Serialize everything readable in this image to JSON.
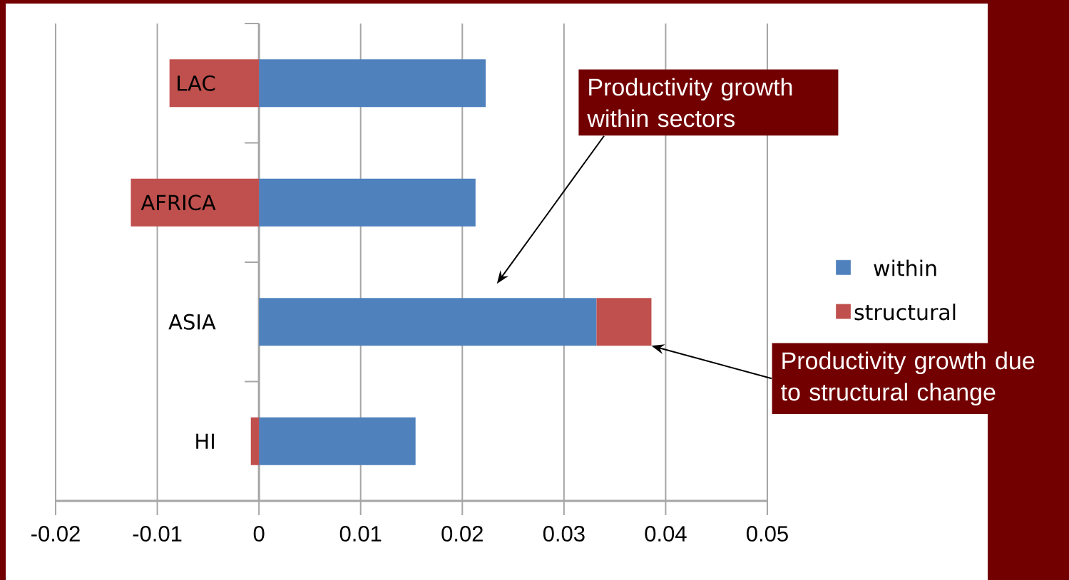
{
  "chart_data": {
    "type": "bar",
    "orientation": "horizontal",
    "stacked": true,
    "categories": [
      "LAC",
      "AFRICA",
      "ASIA",
      "HI"
    ],
    "series": [
      {
        "name": "within",
        "color": "#4f81bd",
        "values": [
          0.0223,
          0.0213,
          0.0332,
          0.0154
        ]
      },
      {
        "name": "structural",
        "color": "#c0504d",
        "values": [
          -0.0088,
          -0.0126,
          0.0054,
          -0.0008
        ]
      }
    ],
    "xlim": [
      -0.02,
      0.05
    ],
    "xticks": [
      -0.02,
      -0.01,
      0,
      0.01,
      0.02,
      0.03,
      0.04,
      0.05
    ],
    "grid": "x",
    "legend": "right",
    "annotations": [
      "Productivity growth within sectors",
      "Productivity growth due to structural change"
    ]
  }
}
